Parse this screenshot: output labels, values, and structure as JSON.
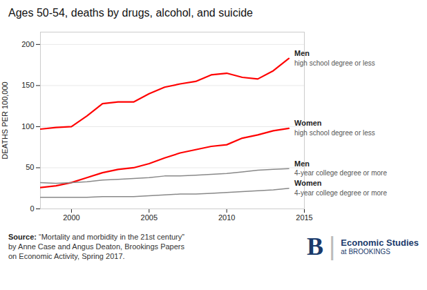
{
  "chart_data": {
    "type": "line",
    "title": "Ages 50-54, deaths by drugs, alcohol, and suicide",
    "ylabel": "DEATHS PER 100,000",
    "x": [
      1998,
      1999,
      2000,
      2001,
      2002,
      2003,
      2004,
      2005,
      2006,
      2007,
      2008,
      2009,
      2010,
      2011,
      2012,
      2013,
      2014
    ],
    "series": [
      {
        "name": "Men",
        "label": "high school degree or less",
        "color": "#ff0000",
        "values": [
          97,
          99,
          100,
          113,
          128,
          130,
          130,
          140,
          148,
          152,
          155,
          163,
          165,
          160,
          158,
          168,
          183
        ]
      },
      {
        "name": "Women",
        "label": "high school degree or less",
        "color": "#ff0000",
        "values": [
          26,
          28,
          32,
          38,
          44,
          48,
          50,
          55,
          62,
          68,
          72,
          76,
          78,
          86,
          90,
          95,
          98
        ]
      },
      {
        "name": "Men",
        "label": "4-year college degree or more",
        "color": "#888888",
        "values": [
          32,
          31,
          32,
          33,
          35,
          36,
          37,
          38,
          40,
          40,
          41,
          42,
          43,
          45,
          47,
          48,
          49
        ]
      },
      {
        "name": "Women",
        "label": "4-year college degree or more",
        "color": "#888888",
        "values": [
          14,
          14,
          14,
          14,
          15,
          15,
          15,
          16,
          17,
          18,
          18,
          19,
          20,
          21,
          22,
          23,
          25
        ]
      }
    ],
    "xlim": [
      1998,
      2015
    ],
    "xticks": [
      2000,
      2005,
      2010,
      2015
    ],
    "ylim": [
      0,
      215
    ],
    "yticks": [
      0,
      50,
      100,
      150,
      200
    ],
    "grid": true,
    "source": [
      "Source:",
      " “Mortality and morbidity in the 21st century”\nby Anne Case and Angus Deaton, Brookings Papers\non Economic Activity, Spring 2017."
    ],
    "logo": [
      "B",
      "|",
      "Economic Studies",
      "at BROOKINGS"
    ]
  }
}
